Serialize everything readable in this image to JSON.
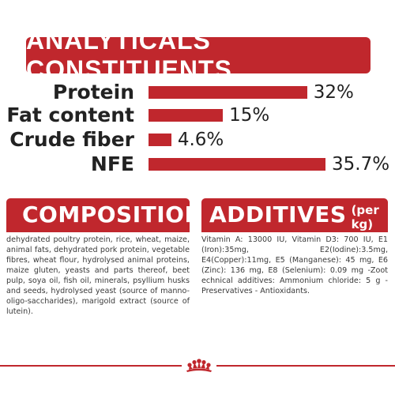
{
  "analytical": {
    "title": "ANALYTICALS CONSTITUENTS",
    "rows": [
      {
        "label": "Protein",
        "value": "32%",
        "percent": 32
      },
      {
        "label": "Fat content",
        "value": "15%",
        "percent": 15
      },
      {
        "label": "Crude fiber",
        "value": "4.6%",
        "percent": 4.6
      },
      {
        "label": "NFE",
        "value": "35.7%",
        "percent": 35.7
      }
    ]
  },
  "composition": {
    "title": "COMPOSITION",
    "text": "dehydrated poultry protein, rice, wheat, maize, animal fats, dehydrated pork protein, vegetable fibres, wheat flour, hydrolysed animal proteins, maize gluten, yeasts and parts thereof, beet pulp, soya oil, fish oil, minerals, psyllium husks and seeds, hydrolysed yeast (source of manno-oligo-saccharides), marigold extract (source of lutein)."
  },
  "additives": {
    "title": "ADDITIVES",
    "subtitle": "(per kg)",
    "text": "Vitamin A: 13000 IU, Vitamin D3: 700 IU, E1 (Iron):35mg, E2(Iodine):3.5mg, E4(Copper):11mg, E5 (Manganese): 45 mg, E6 (Zinc): 136 mg, E8 (Selenium): 0.09 mg -Zoot echnical additives: Ammonium chloride: 5 g - Preservatives - Antioxidants."
  },
  "colors": {
    "accent": "#c0272d"
  },
  "footer": {
    "logo_icon": "crown-icon"
  }
}
